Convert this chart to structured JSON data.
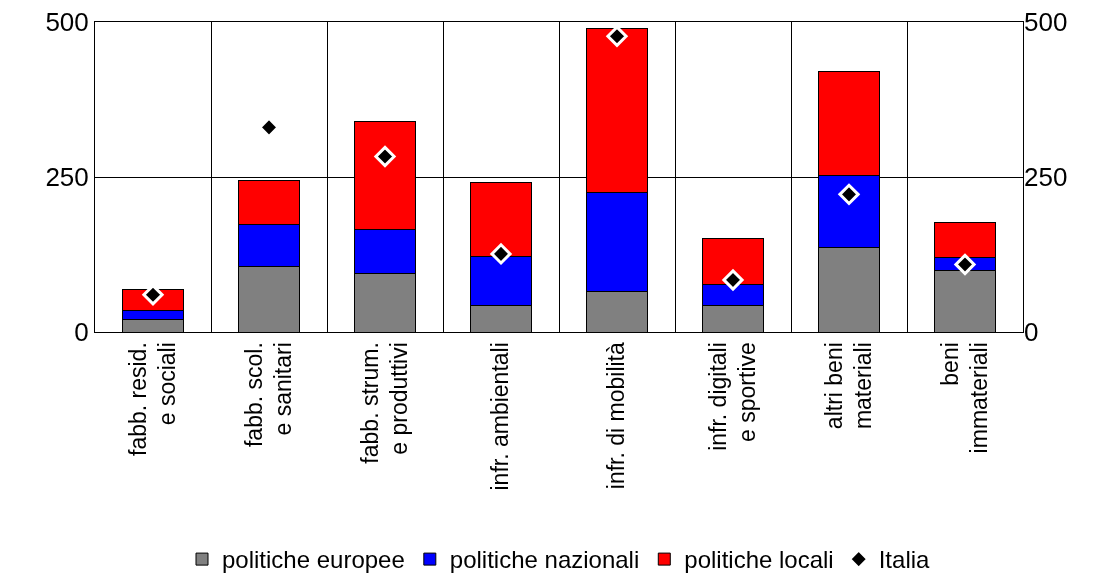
{
  "chart_data": {
    "type": "bar",
    "stacked": true,
    "categories": [
      "fabb. resid.\ne sociali",
      "fabb. scol.\ne sanitari",
      "fabb. strum.\ne produttivi",
      "infr. ambientali",
      "infr. di mobilità",
      "infr. digitali\ne sportive",
      "altri beni\nmateriali",
      "beni\nimmateriali"
    ],
    "series": [
      {
        "name": "politiche europee",
        "color": "#808080",
        "values": [
          20,
          105,
          94,
          43,
          66,
          42,
          137,
          100
        ]
      },
      {
        "name": "politiche nazionali",
        "color": "#0000ff",
        "values": [
          15,
          68,
          72,
          79,
          159,
          35,
          115,
          20
        ]
      },
      {
        "name": "politiche locali",
        "color": "#ff0000",
        "values": [
          34,
          71,
          174,
          119,
          265,
          74,
          168,
          57
        ]
      },
      {
        "name": "Italia",
        "type": "scatter",
        "marker": "diamond",
        "color": "#000000",
        "values": [
          60,
          330,
          283,
          126,
          477,
          84,
          222,
          109
        ]
      }
    ],
    "ylim": [
      0,
      500
    ],
    "yticks": [
      0,
      250,
      500
    ],
    "y2lim": [
      0,
      500
    ],
    "y2ticks": [
      0,
      250,
      500
    ],
    "grid": true,
    "legend": "bottom"
  }
}
